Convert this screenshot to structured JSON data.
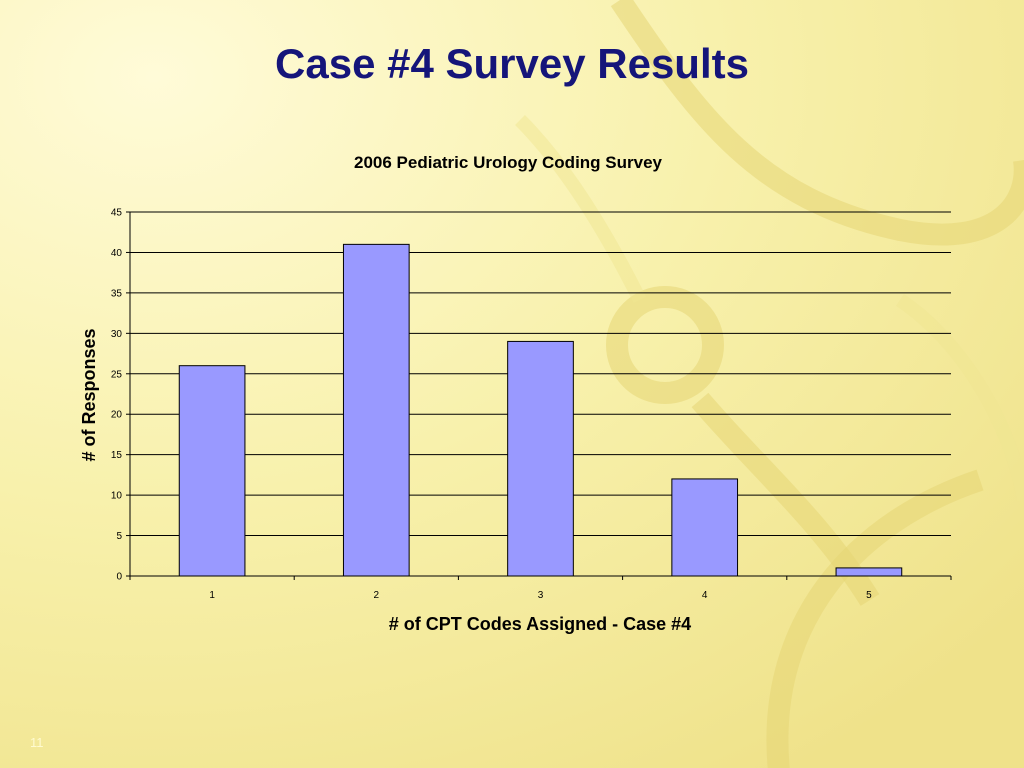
{
  "slide": {
    "title": "Case #4 Survey Results",
    "number": "11"
  },
  "colors": {
    "title": "#15157a",
    "bar_fill": "#9999ff",
    "bar_stroke": "#000000",
    "background": "#f7f0a8"
  },
  "chart_data": {
    "type": "bar",
    "title": "2006 Pediatric Urology Coding Survey",
    "xlabel": "# of CPT Codes Assigned - Case #4",
    "ylabel": "# of Responses",
    "categories": [
      "1",
      "2",
      "3",
      "4",
      "5"
    ],
    "values": [
      26,
      41,
      29,
      12,
      1
    ],
    "ylim": [
      0,
      45
    ],
    "yticks": [
      0,
      5,
      10,
      15,
      20,
      25,
      30,
      35,
      40,
      45
    ],
    "grid": true,
    "legend": "none"
  }
}
